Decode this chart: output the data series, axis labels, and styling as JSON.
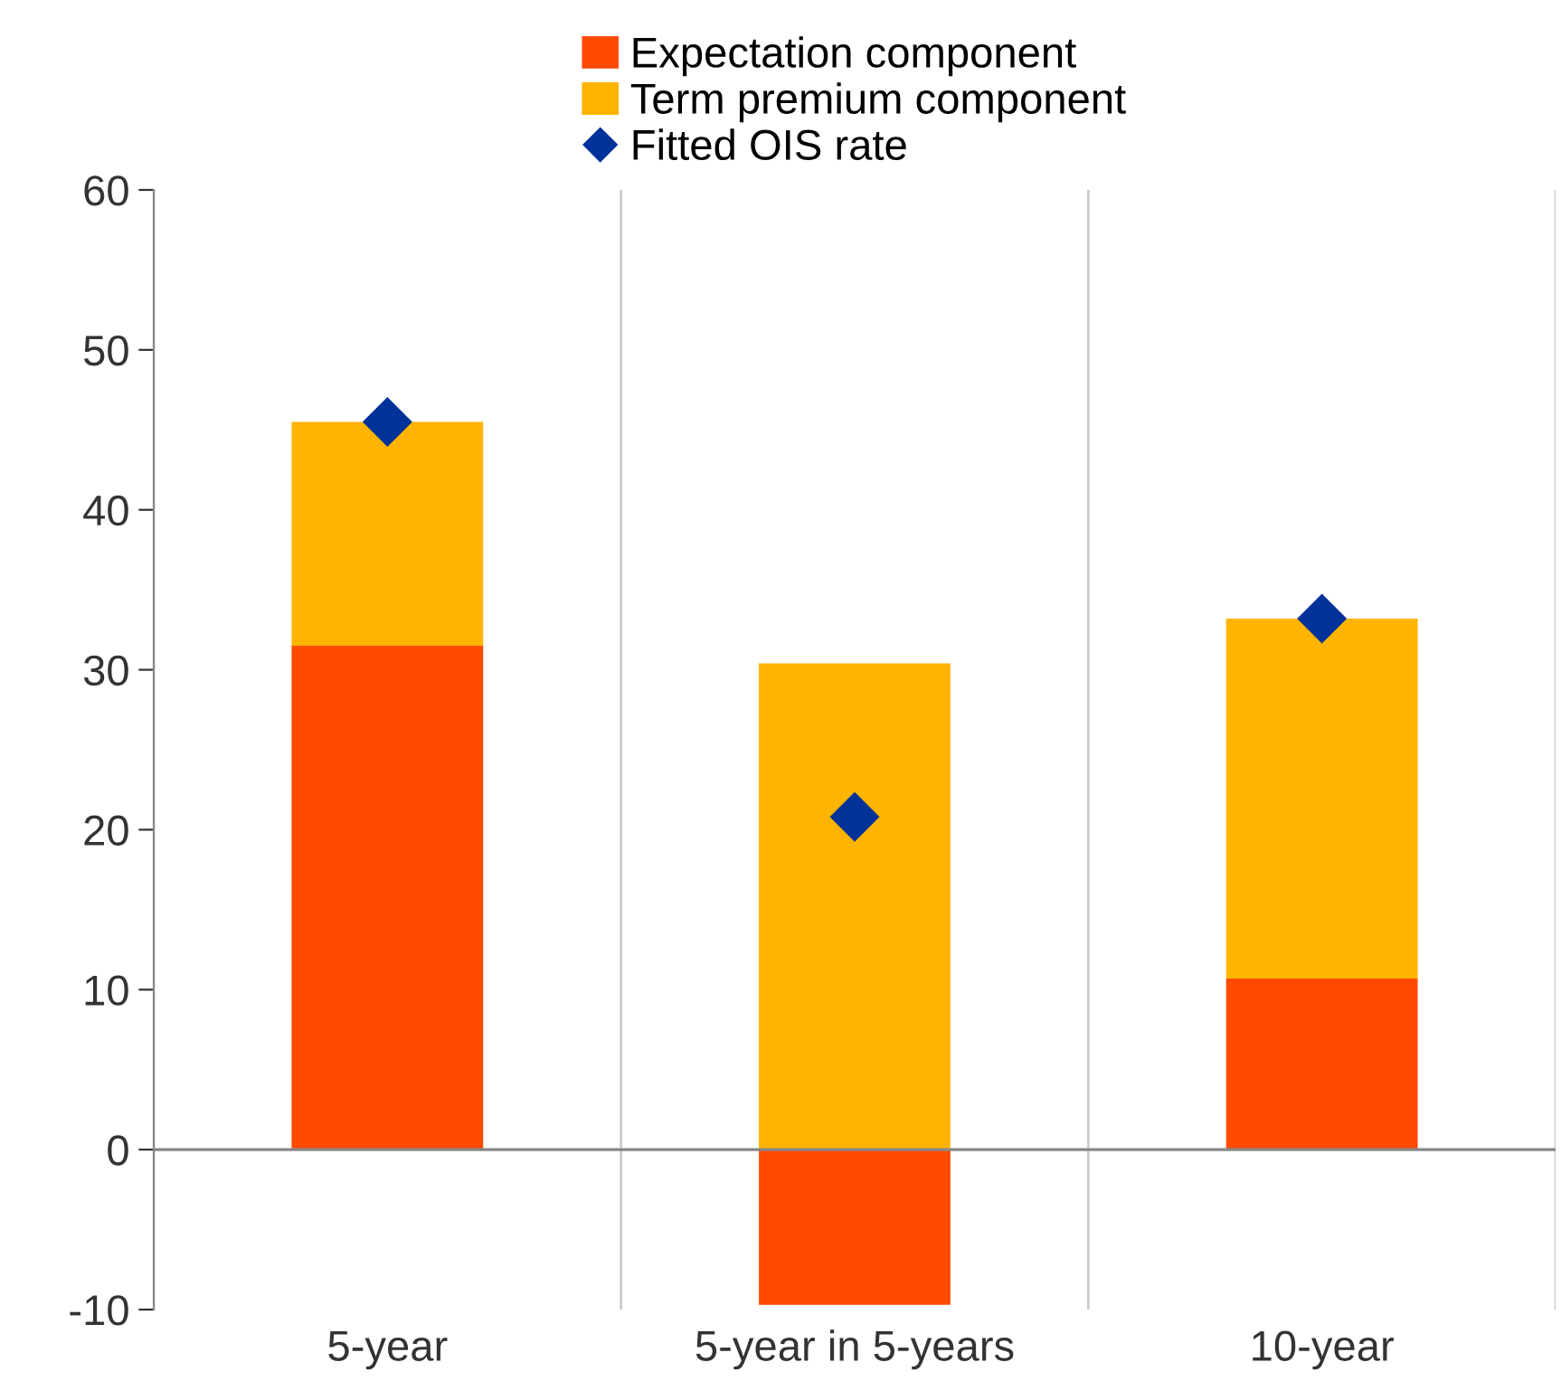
{
  "chart_data": {
    "type": "bar",
    "stacked": true,
    "categories": [
      "5-year",
      "5-year in 5-years",
      "10-year"
    ],
    "series": [
      {
        "name": "Expectation component",
        "color": "#ff4b00",
        "values": [
          31.5,
          -9.7,
          10.7
        ]
      },
      {
        "name": "Term premium component",
        "color": "#ffb400",
        "values": [
          14.0,
          30.4,
          22.5
        ]
      },
      {
        "name": "Fitted OIS rate",
        "type": "scatter",
        "marker": "diamond",
        "color": "#003299",
        "values": [
          45.5,
          20.8,
          33.2
        ]
      }
    ],
    "ylim": [
      -10,
      60
    ],
    "yticks": [
      -10,
      0,
      10,
      20,
      30,
      40,
      50,
      60
    ],
    "grid": "x",
    "legend": "top"
  }
}
